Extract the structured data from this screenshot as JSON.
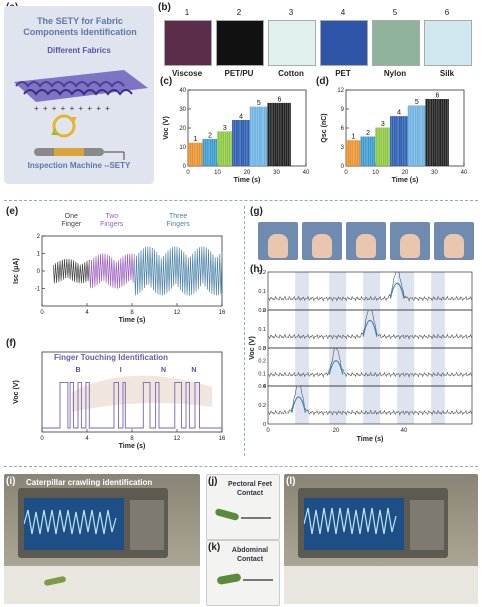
{
  "panel_labels": {
    "a": "(a)",
    "b": "(b)",
    "c": "(c)",
    "d": "(d)",
    "e": "(e)",
    "f": "(f)",
    "g": "(g)",
    "h": "(h)",
    "i": "(i)",
    "j": "(j)",
    "k": "(k)",
    "l": "(l)"
  },
  "panel_a": {
    "title": "The SETY for Fabric Components Identification",
    "subtitle": "Different Fabrics",
    "machine_label": "Inspection Machine --SETY",
    "plus_signs": "+ + + + + + + + +"
  },
  "panel_b": {
    "fabrics": [
      {
        "num": "1",
        "name": "Viscose",
        "color": "#5b2d4a"
      },
      {
        "num": "2",
        "name": "PET/PU",
        "color": "#111111"
      },
      {
        "num": "3",
        "name": "Cotton",
        "color": "#dff0ef"
      },
      {
        "num": "4",
        "name": "PET",
        "color": "#2f55a8"
      },
      {
        "num": "5",
        "name": "Nylon",
        "color": "#8fb39b"
      },
      {
        "num": "6",
        "name": "Silk",
        "color": "#cfe8ef"
      }
    ]
  },
  "panel_e_labels": {
    "one": "One Finger",
    "two": "Two Fingers",
    "three": "Three Fingers"
  },
  "panel_f_labels": {
    "title": "Finger Touching Identification",
    "letters": [
      "B",
      "I",
      "N",
      "N"
    ]
  },
  "panel_i": {
    "title": "Caterpillar crawling identification"
  },
  "panel_j": {
    "label": "Pectoral Feet Contact"
  },
  "panel_k": {
    "label": "Abdominal Contact"
  },
  "chart_data": [
    {
      "id": "c",
      "type": "line",
      "ylabel": "Voc (V)",
      "xlabel": "Time (s)",
      "xlim": [
        0,
        40
      ],
      "ylim": [
        0,
        40
      ],
      "xticks": [
        0,
        10,
        20,
        30,
        40
      ],
      "yticks": [
        0,
        10,
        20,
        30,
        40
      ],
      "series": [
        {
          "name": "1",
          "x_range": [
            0,
            5
          ],
          "peak": 12,
          "color": "#e8902b"
        },
        {
          "name": "2",
          "x_range": [
            5,
            10
          ],
          "peak": 14,
          "color": "#3a9ad0"
        },
        {
          "name": "3",
          "x_range": [
            10,
            15
          ],
          "peak": 18,
          "color": "#8cc63f"
        },
        {
          "name": "4",
          "x_range": [
            15,
            21
          ],
          "peak": 24,
          "color": "#2e5fb0"
        },
        {
          "name": "5",
          "x_range": [
            21,
            27
          ],
          "peak": 31,
          "color": "#6fb3e0"
        },
        {
          "name": "6",
          "x_range": [
            27,
            35
          ],
          "peak": 33,
          "color": "#222222"
        }
      ]
    },
    {
      "id": "d",
      "type": "line",
      "ylabel": "Qsc (nC)",
      "xlabel": "Time (s)",
      "xlim": [
        0,
        40
      ],
      "ylim": [
        0,
        12
      ],
      "xticks": [
        0,
        10,
        20,
        30,
        40
      ],
      "yticks": [
        0,
        3,
        6,
        9,
        12
      ],
      "series": [
        {
          "name": "1",
          "x_range": [
            0,
            5
          ],
          "peak": 4,
          "color": "#e8902b"
        },
        {
          "name": "2",
          "x_range": [
            5,
            10
          ],
          "peak": 4.6,
          "color": "#3a9ad0"
        },
        {
          "name": "3",
          "x_range": [
            10,
            15
          ],
          "peak": 6,
          "color": "#8cc63f"
        },
        {
          "name": "4",
          "x_range": [
            15,
            21
          ],
          "peak": 7.8,
          "color": "#2e5fb0"
        },
        {
          "name": "5",
          "x_range": [
            21,
            27
          ],
          "peak": 9.5,
          "color": "#6fb3e0"
        },
        {
          "name": "6",
          "x_range": [
            27,
            35
          ],
          "peak": 10.5,
          "color": "#222222"
        }
      ]
    },
    {
      "id": "e",
      "type": "line",
      "ylabel": "Isc (μA)",
      "xlabel": "Time (s)",
      "xlim": [
        0,
        16
      ],
      "ylim": [
        -2,
        2
      ],
      "xticks": [
        0,
        4,
        8,
        12,
        16
      ],
      "yticks": [
        -1,
        0,
        1,
        2
      ],
      "series": [
        {
          "name": "One Finger",
          "x_range": [
            1,
            4.2
          ],
          "amp": 0.7,
          "color": "#444444"
        },
        {
          "name": "Two Fingers",
          "x_range": [
            4.2,
            8.2
          ],
          "amp": 1.0,
          "color": "#9b5fc0"
        },
        {
          "name": "Three Fingers",
          "x_range": [
            8.2,
            16
          ],
          "amp": 1.4,
          "color": "#4e83a8"
        }
      ]
    },
    {
      "id": "f",
      "type": "line",
      "ylabel": "Voc (V)",
      "xlabel": "Time (s)",
      "xlim": [
        0,
        16
      ],
      "ylim": [
        0,
        1
      ],
      "xticks": [
        0,
        4,
        8,
        12,
        16
      ],
      "pulses": [
        [
          1.6,
          2.3
        ],
        [
          2.5,
          2.8
        ],
        [
          3.2,
          3.5
        ],
        [
          3.9,
          4.2
        ],
        [
          6.4,
          6.8
        ],
        [
          7.2,
          7.4
        ],
        [
          9.0,
          9.6
        ],
        [
          10.1,
          10.4
        ],
        [
          11.8,
          12.4
        ],
        [
          12.8,
          13.1
        ],
        [
          13.6,
          14.0
        ]
      ],
      "color": "#7a64b8"
    },
    {
      "id": "h",
      "type": "line",
      "ylabel": "Voc (V)",
      "xlabel": "Time (s)",
      "xlim": [
        0,
        60
      ],
      "xticks": [
        0,
        20,
        40
      ],
      "rows": [
        {
          "ylim": [
            0,
            0.2
          ],
          "yticks": [
            0,
            0.1,
            0.2
          ],
          "peak_x": 38,
          "peak": 0.16
        },
        {
          "ylim": [
            0,
            0.2
          ],
          "yticks": [
            0,
            0.1,
            0.2
          ],
          "peak_x": 30,
          "peak": 0.17
        },
        {
          "ylim": [
            0,
            0.3
          ],
          "yticks": [
            0,
            0.1,
            0.2,
            0.3
          ],
          "peak_x": 20,
          "peak": 0.22
        },
        {
          "ylim": [
            0,
            0.4
          ],
          "yticks": [
            0,
            0.2,
            0.4
          ],
          "peak_x": 9,
          "peak": 0.33
        }
      ],
      "bands": [
        [
          8,
          12
        ],
        [
          18,
          23
        ],
        [
          28,
          33
        ],
        [
          38,
          43
        ],
        [
          48,
          52
        ]
      ]
    }
  ]
}
